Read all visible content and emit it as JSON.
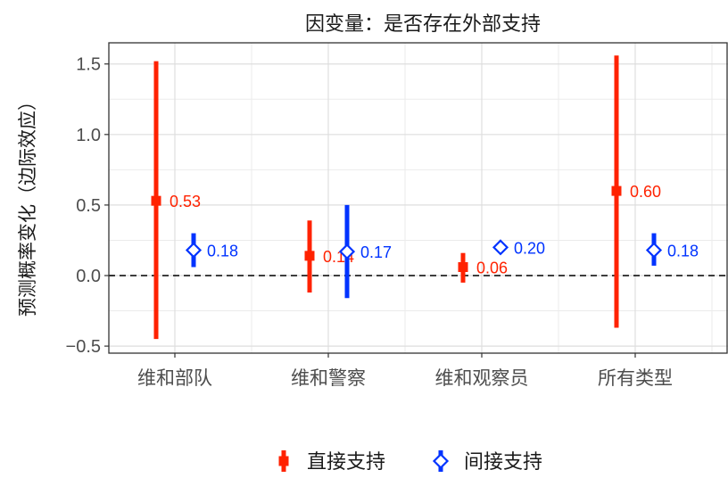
{
  "chart_data": {
    "type": "errorbar",
    "title": "因变量：是否存在外部支持",
    "xlabel": "",
    "ylabel": "预测概率变化（边际效应）",
    "categories": [
      "维和部队",
      "维和警察",
      "维和观察员",
      "所有类型"
    ],
    "ylim": [
      -0.55,
      1.65
    ],
    "yticks": [
      -0.5,
      0.0,
      0.5,
      1.0,
      1.5
    ],
    "ytick_labels": [
      "−0.5",
      "0.0",
      "0.5",
      "1.0",
      "1.5"
    ],
    "reference_line": 0,
    "grid": true,
    "legend_position": "bottom",
    "series": [
      {
        "name": "直接支持",
        "color": "#ff2200",
        "marker": "square-filled",
        "estimates": [
          0.53,
          0.14,
          0.06,
          0.6
        ],
        "lower": [
          -0.45,
          -0.12,
          -0.05,
          -0.37
        ],
        "upper": [
          1.52,
          0.39,
          0.16,
          1.56
        ],
        "labels": [
          "0.53",
          "0.14",
          "0.06",
          "0.60"
        ]
      },
      {
        "name": "间接支持",
        "color": "#0033ff",
        "marker": "diamond-open",
        "estimates": [
          0.18,
          0.17,
          0.2,
          0.18
        ],
        "lower": [
          0.06,
          -0.16,
          null,
          0.07
        ],
        "upper": [
          0.3,
          0.5,
          null,
          0.3
        ],
        "labels": [
          "0.18",
          "0.17",
          "0.20",
          "0.18"
        ]
      }
    ]
  }
}
